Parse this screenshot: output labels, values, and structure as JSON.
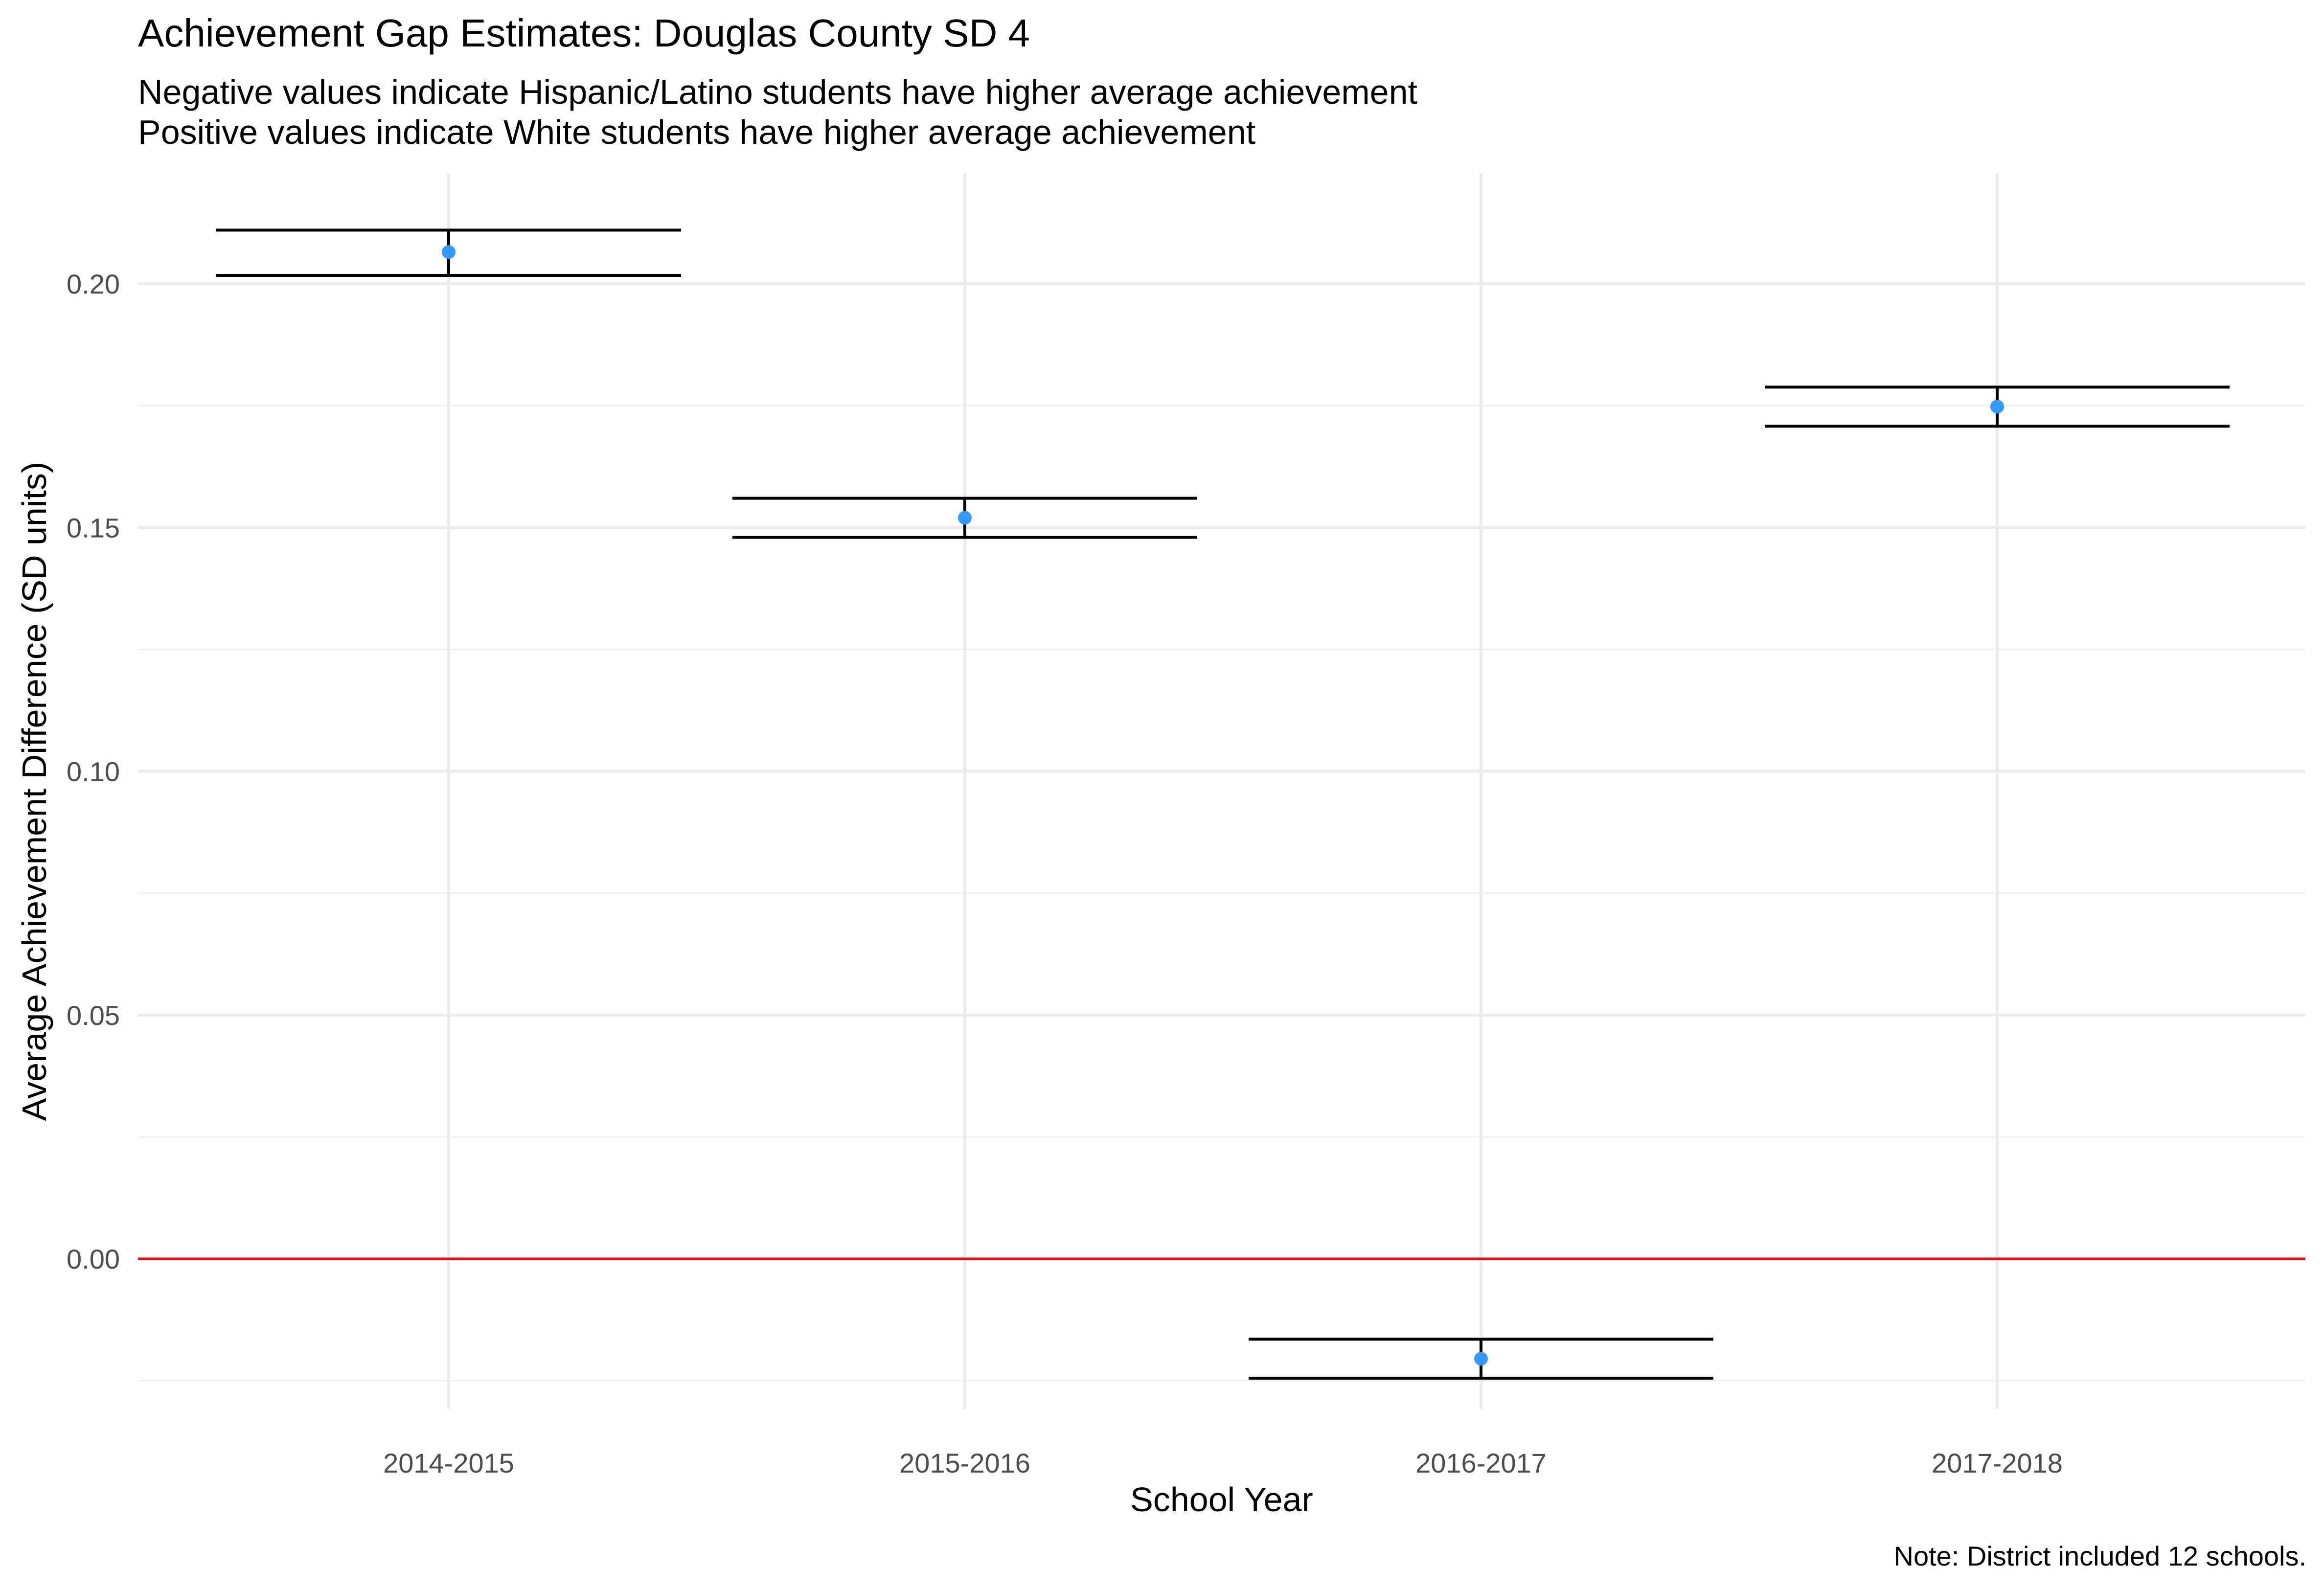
{
  "chart_data": {
    "type": "scatter",
    "title": "Achievement Gap Estimates: Douglas County SD 4",
    "subtitle": [
      "Negative values indicate Hispanic/Latino students have higher average achievement",
      "Positive values indicate White students have higher average achievement"
    ],
    "xlabel": "School Year",
    "ylabel": "Average Achievement Difference (SD units)",
    "caption": "Note: District included 12 schools.",
    "categories": [
      "2014-2015",
      "2015-2016",
      "2016-2017",
      "2017-2018"
    ],
    "values": [
      0.2065,
      0.152,
      -0.0205,
      0.1748
    ],
    "ci_lower": [
      0.2017,
      0.148,
      -0.0245,
      0.1708
    ],
    "ci_upper": [
      0.211,
      0.156,
      -0.0165,
      0.1788
    ],
    "yticks": [
      0.0,
      0.05,
      0.1,
      0.15,
      0.2
    ],
    "ytick_labels": [
      "0.00",
      "0.05",
      "0.10",
      "0.15",
      "0.20"
    ],
    "ylim": [
      -0.025,
      0.222
    ],
    "reference_line": {
      "y": 0,
      "color": "#ff0000"
    },
    "grid": true,
    "point_color": "#3399ff",
    "errorbar_color": "#000000"
  }
}
